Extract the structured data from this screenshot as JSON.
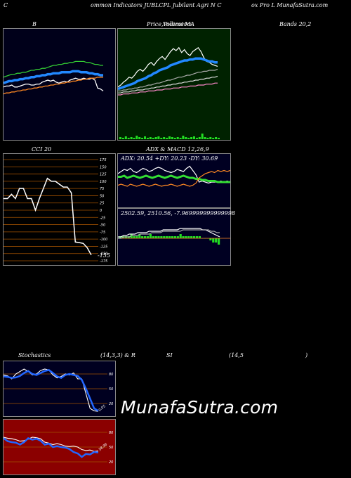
{
  "header": {
    "left": "C",
    "mid": "ommon Indicators JUBLCPL Jubilant Agri  N  C",
    "right": "ox Pro  L MunafaSutra.com"
  },
  "titles": {
    "bands_b": "B",
    "price_a": "Price,",
    "price_b": "Volume",
    "price_c": "Indicators",
    "price_d": "MA",
    "bands": "Bands 20,2",
    "cci": "CCI 20",
    "adx_macd": "ADX  & MACD 12,26,9",
    "stoch_a": "Stochastics",
    "stoch_b": "(14,3,3) & R",
    "stoch_c": "SI",
    "stoch_d": "(14,5",
    "stoch_e": ")"
  },
  "adx_text": "ADX: 20.54   +DY: 20.23  -DY: 30.69",
  "macd_text": "2502.59,  2510.56,  -7.969999999999998",
  "cci_value": "-155",
  "stoch_value": "0.05",
  "rsi_value": "38.96",
  "watermark": "MunafaSutra.com",
  "colors": {
    "bands_bg": "#00001a",
    "price_bg": "#002200",
    "cci_bg": "#000000",
    "adx_bg": "#000022",
    "stoch_bg": "#000020",
    "rsi_bg": "#8b0000"
  },
  "chart_data": [
    {
      "type": "line",
      "name": "bands",
      "series": [
        {
          "values": [
            48,
            49,
            49,
            50,
            48,
            48,
            49,
            50,
            51,
            51,
            50,
            50,
            51,
            51,
            53,
            54,
            55,
            54,
            55,
            53,
            52,
            53,
            54,
            53,
            55,
            56,
            57,
            56,
            56,
            57,
            56,
            56,
            57,
            55,
            47,
            46,
            44
          ],
          "color": "#ffffff"
        },
        {
          "values": [
            52,
            53,
            54,
            54,
            55,
            55,
            56,
            56,
            57,
            57,
            58,
            58,
            59,
            59,
            60,
            60,
            61,
            61,
            62,
            62,
            62,
            63,
            63,
            63,
            63,
            64,
            64,
            64,
            63,
            63,
            63,
            62,
            62,
            61,
            61,
            60,
            60
          ],
          "color": "#2288ff"
        },
        {
          "values": [
            58,
            59,
            60,
            61,
            61,
            62,
            62,
            63,
            63,
            64,
            65,
            65,
            66,
            66,
            67,
            67,
            68,
            69,
            70,
            70,
            71,
            71,
            72,
            72,
            73,
            73,
            74,
            74,
            74,
            74,
            73,
            73,
            72,
            71,
            71,
            70,
            70
          ],
          "color": "#33cc33"
        },
        {
          "values": [
            41,
            42,
            42,
            43,
            43,
            44,
            44,
            45,
            45,
            46,
            46,
            47,
            47,
            48,
            48,
            49,
            49,
            50,
            50,
            51,
            51,
            52,
            52,
            53,
            53,
            54,
            54,
            55,
            55,
            56,
            56,
            57,
            57,
            57,
            58,
            58,
            58
          ],
          "color": "#ff8822"
        }
      ]
    },
    {
      "type": "line",
      "name": "price",
      "series": [
        {
          "values": [
            48,
            50,
            53,
            55,
            58,
            57,
            60,
            64,
            66,
            64,
            67,
            71,
            73,
            70,
            74,
            77,
            79,
            76,
            80,
            84,
            87,
            85,
            88,
            83,
            86,
            82,
            80,
            84,
            86,
            88,
            84,
            78,
            74,
            73,
            71,
            70,
            69
          ],
          "color": "#ffffff"
        },
        {
          "values": [
            46,
            47,
            48,
            49,
            50,
            51,
            52,
            54,
            55,
            56,
            57,
            59,
            60,
            62,
            63,
            65,
            66,
            67,
            68,
            70,
            71,
            72,
            73,
            74,
            75,
            75,
            76,
            76,
            77,
            77,
            77,
            76,
            75,
            74,
            74,
            73,
            73
          ],
          "color": "#2288ff"
        },
        {
          "values": [
            44,
            44,
            45,
            45,
            46,
            46,
            47,
            47,
            48,
            48,
            49,
            50,
            50,
            51,
            52,
            52,
            53,
            54,
            55,
            55,
            56,
            57,
            58,
            58,
            59,
            60,
            60,
            61,
            62,
            63,
            63,
            64,
            64,
            65,
            65,
            65,
            66
          ],
          "color": "#aaaaaa"
        },
        {
          "values": [
            42,
            42,
            43,
            43,
            43,
            44,
            44,
            45,
            45,
            45,
            46,
            46,
            47,
            47,
            48,
            48,
            49,
            49,
            50,
            50,
            51,
            51,
            52,
            52,
            53,
            53,
            54,
            54,
            55,
            55,
            56,
            56,
            57,
            57,
            58,
            58,
            59
          ],
          "color": "#dddddd"
        },
        {
          "values": [
            40,
            40,
            41,
            41,
            41,
            42,
            42,
            42,
            43,
            43,
            43,
            44,
            44,
            44,
            45,
            45,
            45,
            46,
            46,
            46,
            47,
            47,
            47,
            48,
            48,
            48,
            49,
            49,
            49,
            50,
            50,
            50,
            51,
            51,
            51,
            52,
            52
          ],
          "color": "#ff88cc"
        }
      ],
      "volume": [
        3,
        2,
        4,
        2,
        3,
        2,
        5,
        3,
        2,
        4,
        2,
        3,
        2,
        3,
        4,
        2,
        3,
        2,
        4,
        3,
        2,
        3,
        2,
        5,
        3,
        2,
        3,
        4,
        2,
        3,
        8,
        3,
        2,
        3,
        2,
        3,
        2
      ]
    },
    {
      "type": "line",
      "name": "cci",
      "ylim": [
        -175,
        175
      ],
      "ticks": [
        175,
        150,
        125,
        100,
        75,
        50,
        25,
        0,
        -25,
        -50,
        -75,
        -100,
        -125,
        -150,
        -175
      ],
      "values": [
        40,
        40,
        55,
        40,
        75,
        75,
        40,
        40,
        0,
        40,
        75,
        110,
        100,
        100,
        90,
        80,
        80,
        60,
        -110,
        -112,
        -115,
        -130,
        -155
      ]
    },
    {
      "type": "line",
      "name": "adx",
      "series": [
        {
          "values": [
            28,
            30,
            32,
            31,
            33,
            30,
            29,
            31,
            33,
            32,
            30,
            31,
            33,
            34,
            33,
            31,
            30,
            29,
            30,
            32,
            31,
            30,
            33,
            35,
            31,
            27,
            20,
            21,
            20,
            19,
            20,
            20,
            20,
            21,
            20,
            21,
            20
          ],
          "color": "#ffffff"
        },
        {
          "values": [
            25,
            25,
            26,
            24,
            25,
            26,
            25,
            24,
            25,
            26,
            25,
            24,
            25,
            26,
            25,
            24,
            25,
            26,
            25,
            24,
            25,
            26,
            25,
            24,
            24,
            23,
            23,
            22,
            22,
            21,
            21,
            21,
            20,
            20,
            20,
            20,
            20
          ],
          "color": "#33dd33"
        },
        {
          "values": [
            17,
            18,
            17,
            16,
            18,
            17,
            16,
            17,
            18,
            17,
            16,
            17,
            18,
            17,
            16,
            17,
            17,
            18,
            17,
            16,
            17,
            18,
            17,
            16,
            17,
            19,
            24,
            26,
            28,
            29,
            30,
            29,
            31,
            30,
            31,
            30,
            31
          ],
          "color": "#ff8822"
        }
      ]
    },
    {
      "type": "line",
      "name": "macd",
      "series": [
        {
          "values": [
            4,
            4,
            5,
            5,
            6,
            6,
            6,
            7,
            7,
            7,
            7,
            8,
            8,
            8,
            8,
            8,
            9,
            9,
            9,
            9,
            9,
            9,
            10,
            10,
            10,
            10,
            10,
            10,
            10,
            10,
            9,
            9,
            8,
            7,
            6,
            5,
            4
          ],
          "color": "#ffffff"
        },
        {
          "values": [
            3,
            3,
            4,
            4,
            4,
            5,
            5,
            5,
            6,
            6,
            6,
            6,
            7,
            7,
            7,
            7,
            8,
            8,
            8,
            8,
            8,
            8,
            8,
            9,
            9,
            9,
            9,
            9,
            9,
            9,
            9,
            9,
            9,
            8,
            8,
            7,
            7
          ],
          "color": "#aaaaaa"
        }
      ],
      "histogram": [
        1,
        1,
        1,
        1,
        2,
        1,
        1,
        2,
        1,
        1,
        1,
        2,
        1,
        1,
        1,
        1,
        1,
        1,
        1,
        1,
        1,
        1,
        2,
        1,
        1,
        1,
        1,
        1,
        1,
        1,
        0,
        0,
        0,
        -1,
        -2,
        -2,
        -3
      ]
    },
    {
      "type": "line",
      "name": "stochastics",
      "ylim": [
        0,
        100
      ],
      "ticks": [
        80,
        50,
        20
      ],
      "series": [
        {
          "values": [
            78,
            76,
            70,
            80,
            85,
            90,
            85,
            78,
            80,
            87,
            90,
            88,
            78,
            72,
            75,
            80,
            78,
            82,
            70,
            70,
            40,
            10,
            5,
            4
          ],
          "color": "#ffffff"
        },
        {
          "values": [
            75,
            74,
            72,
            73,
            76,
            82,
            86,
            80,
            78,
            82,
            86,
            88,
            82,
            75,
            72,
            78,
            80,
            78,
            76,
            68,
            50,
            30,
            10,
            5
          ],
          "color": "#2266ff"
        }
      ]
    },
    {
      "type": "line",
      "name": "rsi",
      "ylim": [
        0,
        100
      ],
      "ticks": [
        80,
        50,
        20
      ],
      "series": [
        {
          "values": [
            70,
            68,
            67,
            65,
            62,
            63,
            66,
            70,
            69,
            67,
            60,
            58,
            55,
            57,
            55,
            52,
            51,
            52,
            50,
            45,
            43,
            44,
            41,
            42
          ],
          "color": "#ffffff"
        },
        {
          "values": [
            68,
            62,
            60,
            59,
            55,
            60,
            68,
            65,
            67,
            63,
            55,
            57,
            50,
            52,
            50,
            49,
            46,
            40,
            37,
            30,
            36,
            35,
            40,
            39
          ],
          "color": "#2266ff"
        }
      ]
    }
  ]
}
